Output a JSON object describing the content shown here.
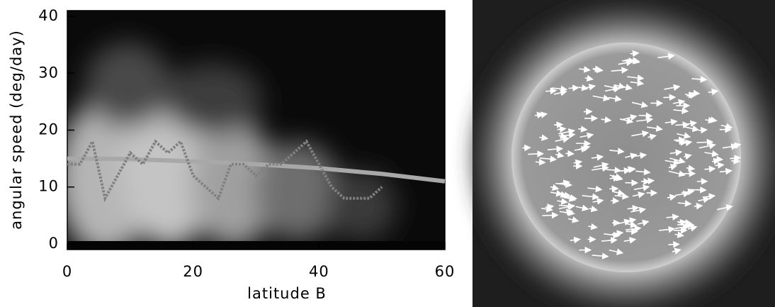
{
  "chart_data": {
    "type": "line",
    "xlabel": "latitude B",
    "ylabel": "angular speed (deg/day)",
    "xlim": [
      0,
      60
    ],
    "ylim": [
      -1,
      41
    ],
    "xticks": [
      0,
      20,
      40,
      60
    ],
    "yticks": [
      0,
      10,
      20,
      30,
      40
    ],
    "series": [
      {
        "color": "#a8a8a8",
        "style": "solid",
        "x": [
          0,
          10,
          20,
          30,
          40,
          50,
          60
        ],
        "values": [
          15,
          14.9,
          14.5,
          14,
          13.3,
          12.3,
          11
        ]
      },
      {
        "color": "#808080",
        "style": "dotted",
        "x": [
          0,
          2,
          4,
          6,
          8,
          10,
          12,
          14,
          16,
          18,
          20,
          22,
          24,
          26,
          28,
          30,
          32,
          34,
          36,
          38,
          40,
          42,
          44,
          46,
          48,
          50
        ],
        "values": [
          14,
          14,
          18,
          8,
          12,
          16,
          14,
          18,
          16,
          18,
          12,
          10,
          8,
          14,
          14,
          12,
          14,
          14,
          16,
          18,
          14,
          10,
          8,
          8,
          8,
          10
        ]
      }
    ]
  }
}
